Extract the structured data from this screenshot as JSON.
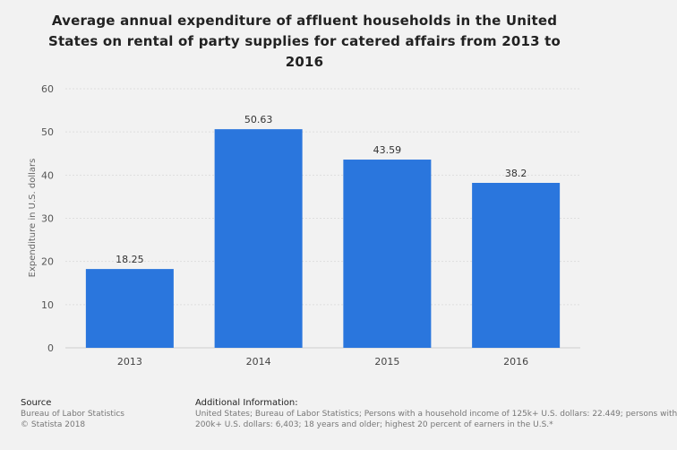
{
  "chart_data": {
    "type": "bar",
    "title_lines": [
      "Average annual expenditure of affluent households in the United",
      "States on rental of party supplies for catered affairs from 2013 to",
      "2016"
    ],
    "categories": [
      "2013",
      "2014",
      "2015",
      "2016"
    ],
    "values": [
      18.25,
      50.63,
      43.59,
      38.2
    ],
    "value_labels": [
      "18.25",
      "50.63",
      "43.59",
      "38.2"
    ],
    "ylabel": "Expenditure in U.S. dollars",
    "xlabel": "",
    "ylim": [
      0,
      60
    ],
    "yticks": [
      0,
      10,
      20,
      30,
      40,
      50,
      60
    ],
    "bar_color": "#2a76dd",
    "grid": true
  },
  "footer": {
    "source_heading": "Source",
    "source_lines": [
      "Bureau of Labor Statistics",
      "© Statista 2018"
    ],
    "info_heading": "Additional Information:",
    "info_lines": [
      "United States; Bureau of Labor Statistics; Persons with a household income of 125k+ U.S. dollars: 22.449; persons with",
      "200k+ U.S. dollars: 6,403; 18 years and older; highest 20 percent of earners in the U.S.*"
    ]
  }
}
